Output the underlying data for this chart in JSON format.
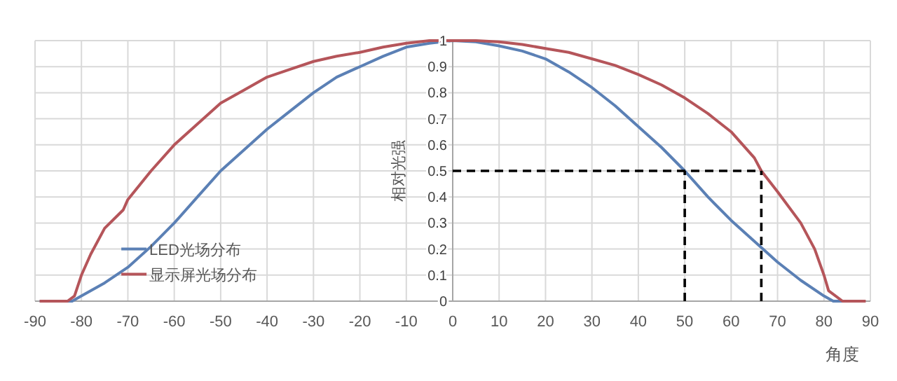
{
  "chart_data": {
    "type": "line",
    "xlabel": "角度",
    "ylabel": "相对光强",
    "xlim": [
      -90,
      90
    ],
    "xticks": [
      -90,
      -80,
      -70,
      -60,
      -50,
      -40,
      -30,
      -20,
      -10,
      0,
      10,
      20,
      30,
      40,
      50,
      60,
      70,
      80,
      90
    ],
    "ylim": [
      0,
      1
    ],
    "yticks": [
      0,
      0.1,
      0.2,
      0.3,
      0.4,
      0.5,
      0.6,
      0.7,
      0.8,
      0.9,
      1
    ],
    "grid": true,
    "legend": "bottom left",
    "marker": "none",
    "series": [
      {
        "name": "LED光场分布",
        "color": "#5b80b5",
        "line_style": "solid",
        "x": [
          -89,
          -82,
          -80,
          -75,
          -70,
          -65,
          -60,
          -55,
          -50,
          -45,
          -40,
          -35,
          -30,
          -25,
          -20,
          -15,
          -10,
          -5,
          0,
          5,
          10,
          15,
          20,
          25,
          30,
          35,
          40,
          45,
          50,
          55,
          60,
          65,
          70,
          75,
          80,
          82,
          84
        ],
        "values": [
          0,
          0,
          0.02,
          0.07,
          0.13,
          0.21,
          0.3,
          0.4,
          0.5,
          0.58,
          0.66,
          0.73,
          0.8,
          0.86,
          0.9,
          0.94,
          0.975,
          0.99,
          1,
          0.995,
          0.98,
          0.96,
          0.93,
          0.88,
          0.82,
          0.75,
          0.67,
          0.59,
          0.5,
          0.4,
          0.31,
          0.23,
          0.15,
          0.08,
          0.02,
          0,
          0
        ]
      },
      {
        "name": "显示屏光场分布",
        "color": "#b5555a",
        "line_style": "solid",
        "x": [
          -89,
          -83,
          -81.5,
          -80,
          -78,
          -75,
          -71,
          -70,
          -65,
          -60,
          -55,
          -50,
          -45,
          -40,
          -35,
          -30,
          -25,
          -20,
          -15,
          -10,
          -5,
          0,
          5,
          10,
          15,
          20,
          25,
          30,
          35,
          40,
          45,
          50,
          55,
          60,
          65,
          66.5,
          70,
          75,
          78,
          80,
          81,
          84,
          89
        ],
        "values": [
          0,
          0,
          0.02,
          0.1,
          0.18,
          0.28,
          0.35,
          0.39,
          0.5,
          0.6,
          0.68,
          0.76,
          0.81,
          0.86,
          0.89,
          0.92,
          0.94,
          0.955,
          0.975,
          0.99,
          1,
          1,
          1,
          0.995,
          0.985,
          0.97,
          0.955,
          0.93,
          0.905,
          0.87,
          0.83,
          0.78,
          0.72,
          0.65,
          0.55,
          0.5,
          0.42,
          0.3,
          0.2,
          0.1,
          0.04,
          0,
          0
        ]
      },
      {
        "color": "#000000",
        "line_style": "dashed",
        "x": [
          0,
          66.5
        ],
        "values": [
          0.5,
          0.5
        ]
      },
      {
        "color": "#000000",
        "line_style": "dashed",
        "x": [
          50,
          50
        ],
        "values": [
          0,
          0.5
        ]
      },
      {
        "color": "#000000",
        "line_style": "dashed",
        "x": [
          66.5,
          66.5
        ],
        "values": [
          0,
          0.5
        ]
      }
    ]
  }
}
